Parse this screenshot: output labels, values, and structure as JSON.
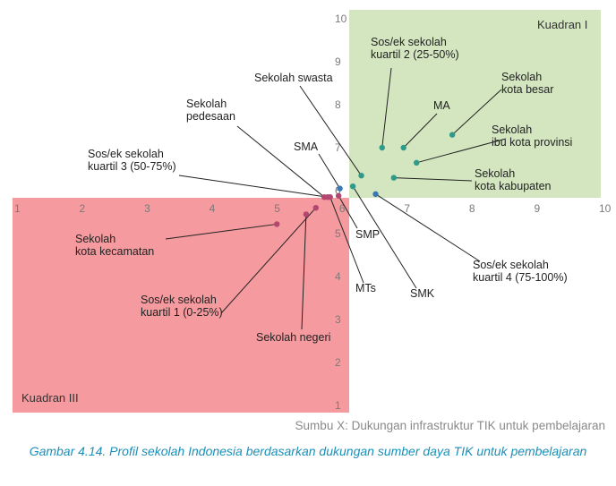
{
  "chart_data": {
    "type": "scatter",
    "xlabel": "Sumbu X: Dukungan infrastruktur TIK untuk pembelajaran",
    "xlim": [
      1,
      10
    ],
    "ylim": [
      1,
      10
    ],
    "x_ticks": [
      "1",
      "2",
      "3",
      "4",
      "5",
      "6",
      "7",
      "8",
      "9",
      "10"
    ],
    "y_ticks": [
      "1",
      "2",
      "3",
      "4",
      "5",
      "6",
      "7",
      "8",
      "9",
      "10"
    ],
    "quadrants": [
      {
        "label": "Kuadran I",
        "color": "#d3e6c0"
      },
      {
        "label": "Kuadran III",
        "color": "#f59a9e"
      }
    ],
    "points": [
      {
        "label": "Sos/ek sekolah\nkuartil 2 (25-50%)",
        "x": 6.62,
        "y": 7.0,
        "color": "#2e9a8a"
      },
      {
        "label": "MA",
        "x": 6.95,
        "y": 7.0,
        "color": "#2e9a8a"
      },
      {
        "label": "Sekolah\nkota besar",
        "x": 7.7,
        "y": 7.3,
        "color": "#2e9a8a"
      },
      {
        "label": "Sekolah\nibu kota provinsi",
        "x": 7.15,
        "y": 6.65,
        "color": "#2e9a8a"
      },
      {
        "label": "Sekolah\nkota kabupaten",
        "x": 6.8,
        "y": 6.3,
        "color": "#2e9a8a"
      },
      {
        "label": "Sekolah swasta",
        "x": 6.3,
        "y": 6.35,
        "color": "#2e9a8a"
      },
      {
        "label": "SMA",
        "x": 5.97,
        "y": 6.05,
        "color": "#3a78b5"
      },
      {
        "label": "SMK",
        "x": 6.17,
        "y": 6.1,
        "color": "#2e9a8a"
      },
      {
        "label": "Sos/ek sekolah\nkuartil 4 (75-100%)",
        "x": 6.52,
        "y": 5.92,
        "color": "#3a78b5"
      },
      {
        "label": "Sekolah\npedesaan",
        "x": 5.73,
        "y": 5.85,
        "color": "#b3476f"
      },
      {
        "label": "Sos/ek sekolah\nkuartil 3 (50-75%)",
        "x": 5.78,
        "y": 5.85,
        "color": "#b3476f"
      },
      {
        "label": "SMP",
        "x": 5.95,
        "y": 5.88,
        "color": "#b3476f"
      },
      {
        "label": "MTs",
        "x": 5.82,
        "y": 5.85,
        "color": "#b3476f"
      },
      {
        "label": "Sekolah\nkota kecamatan",
        "x": 5.0,
        "y": 5.22,
        "color": "#b3476f"
      },
      {
        "label": "Sos/ek sekolah\nkuartil 1 (0-25%)",
        "x": 5.6,
        "y": 5.6,
        "color": "#b3476f"
      },
      {
        "label": "Sekolah negeri",
        "x": 5.45,
        "y": 5.45,
        "color": "#b3476f"
      }
    ]
  },
  "caption": "Gambar 4.14. Profil sekolah Indonesia berdasarkan dukungan sumber daya TIK untuk pembelajaran"
}
